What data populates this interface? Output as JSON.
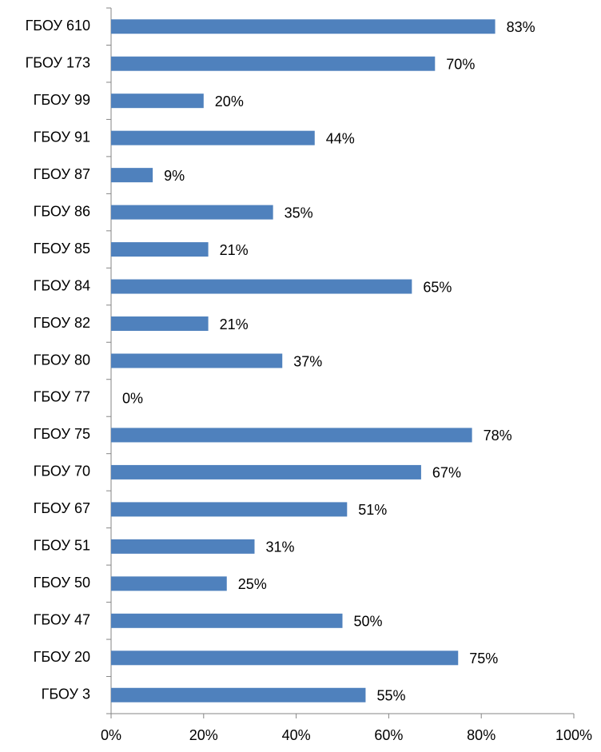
{
  "chart_data": {
    "type": "hbar",
    "categories": [
      "ГБОУ 610",
      "ГБОУ 173",
      "ГБОУ 99",
      "ГБОУ 91",
      "ГБОУ 87",
      "ГБОУ 86",
      "ГБОУ 85",
      "ГБОУ 84",
      "ГБОУ 82",
      "ГБОУ 80",
      "ГБОУ 77",
      "ГБОУ 75",
      "ГБОУ 70",
      "ГБОУ 67",
      "ГБОУ 51",
      "ГБОУ 50",
      "ГБОУ 47",
      "ГБОУ 20",
      "ГБОУ 3"
    ],
    "values": [
      83,
      70,
      20,
      44,
      9,
      35,
      21,
      65,
      21,
      37,
      0,
      78,
      67,
      51,
      31,
      25,
      50,
      75,
      55
    ],
    "value_labels": [
      "83%",
      "70%",
      "20%",
      "44%",
      "9%",
      "35%",
      "21%",
      "65%",
      "21%",
      "37%",
      "0%",
      "78%",
      "67%",
      "51%",
      "31%",
      "25%",
      "50%",
      "75%",
      "55%"
    ],
    "color": "#4f81bd",
    "xlim": [
      0,
      100
    ],
    "xticks": [
      {
        "value": 0,
        "label": "0%"
      },
      {
        "value": 20,
        "label": "20%"
      },
      {
        "value": 40,
        "label": "40%"
      },
      {
        "value": 60,
        "label": "60%"
      },
      {
        "value": 80,
        "label": "80%"
      },
      {
        "value": 100,
        "label": "100%"
      }
    ],
    "grid": false
  }
}
